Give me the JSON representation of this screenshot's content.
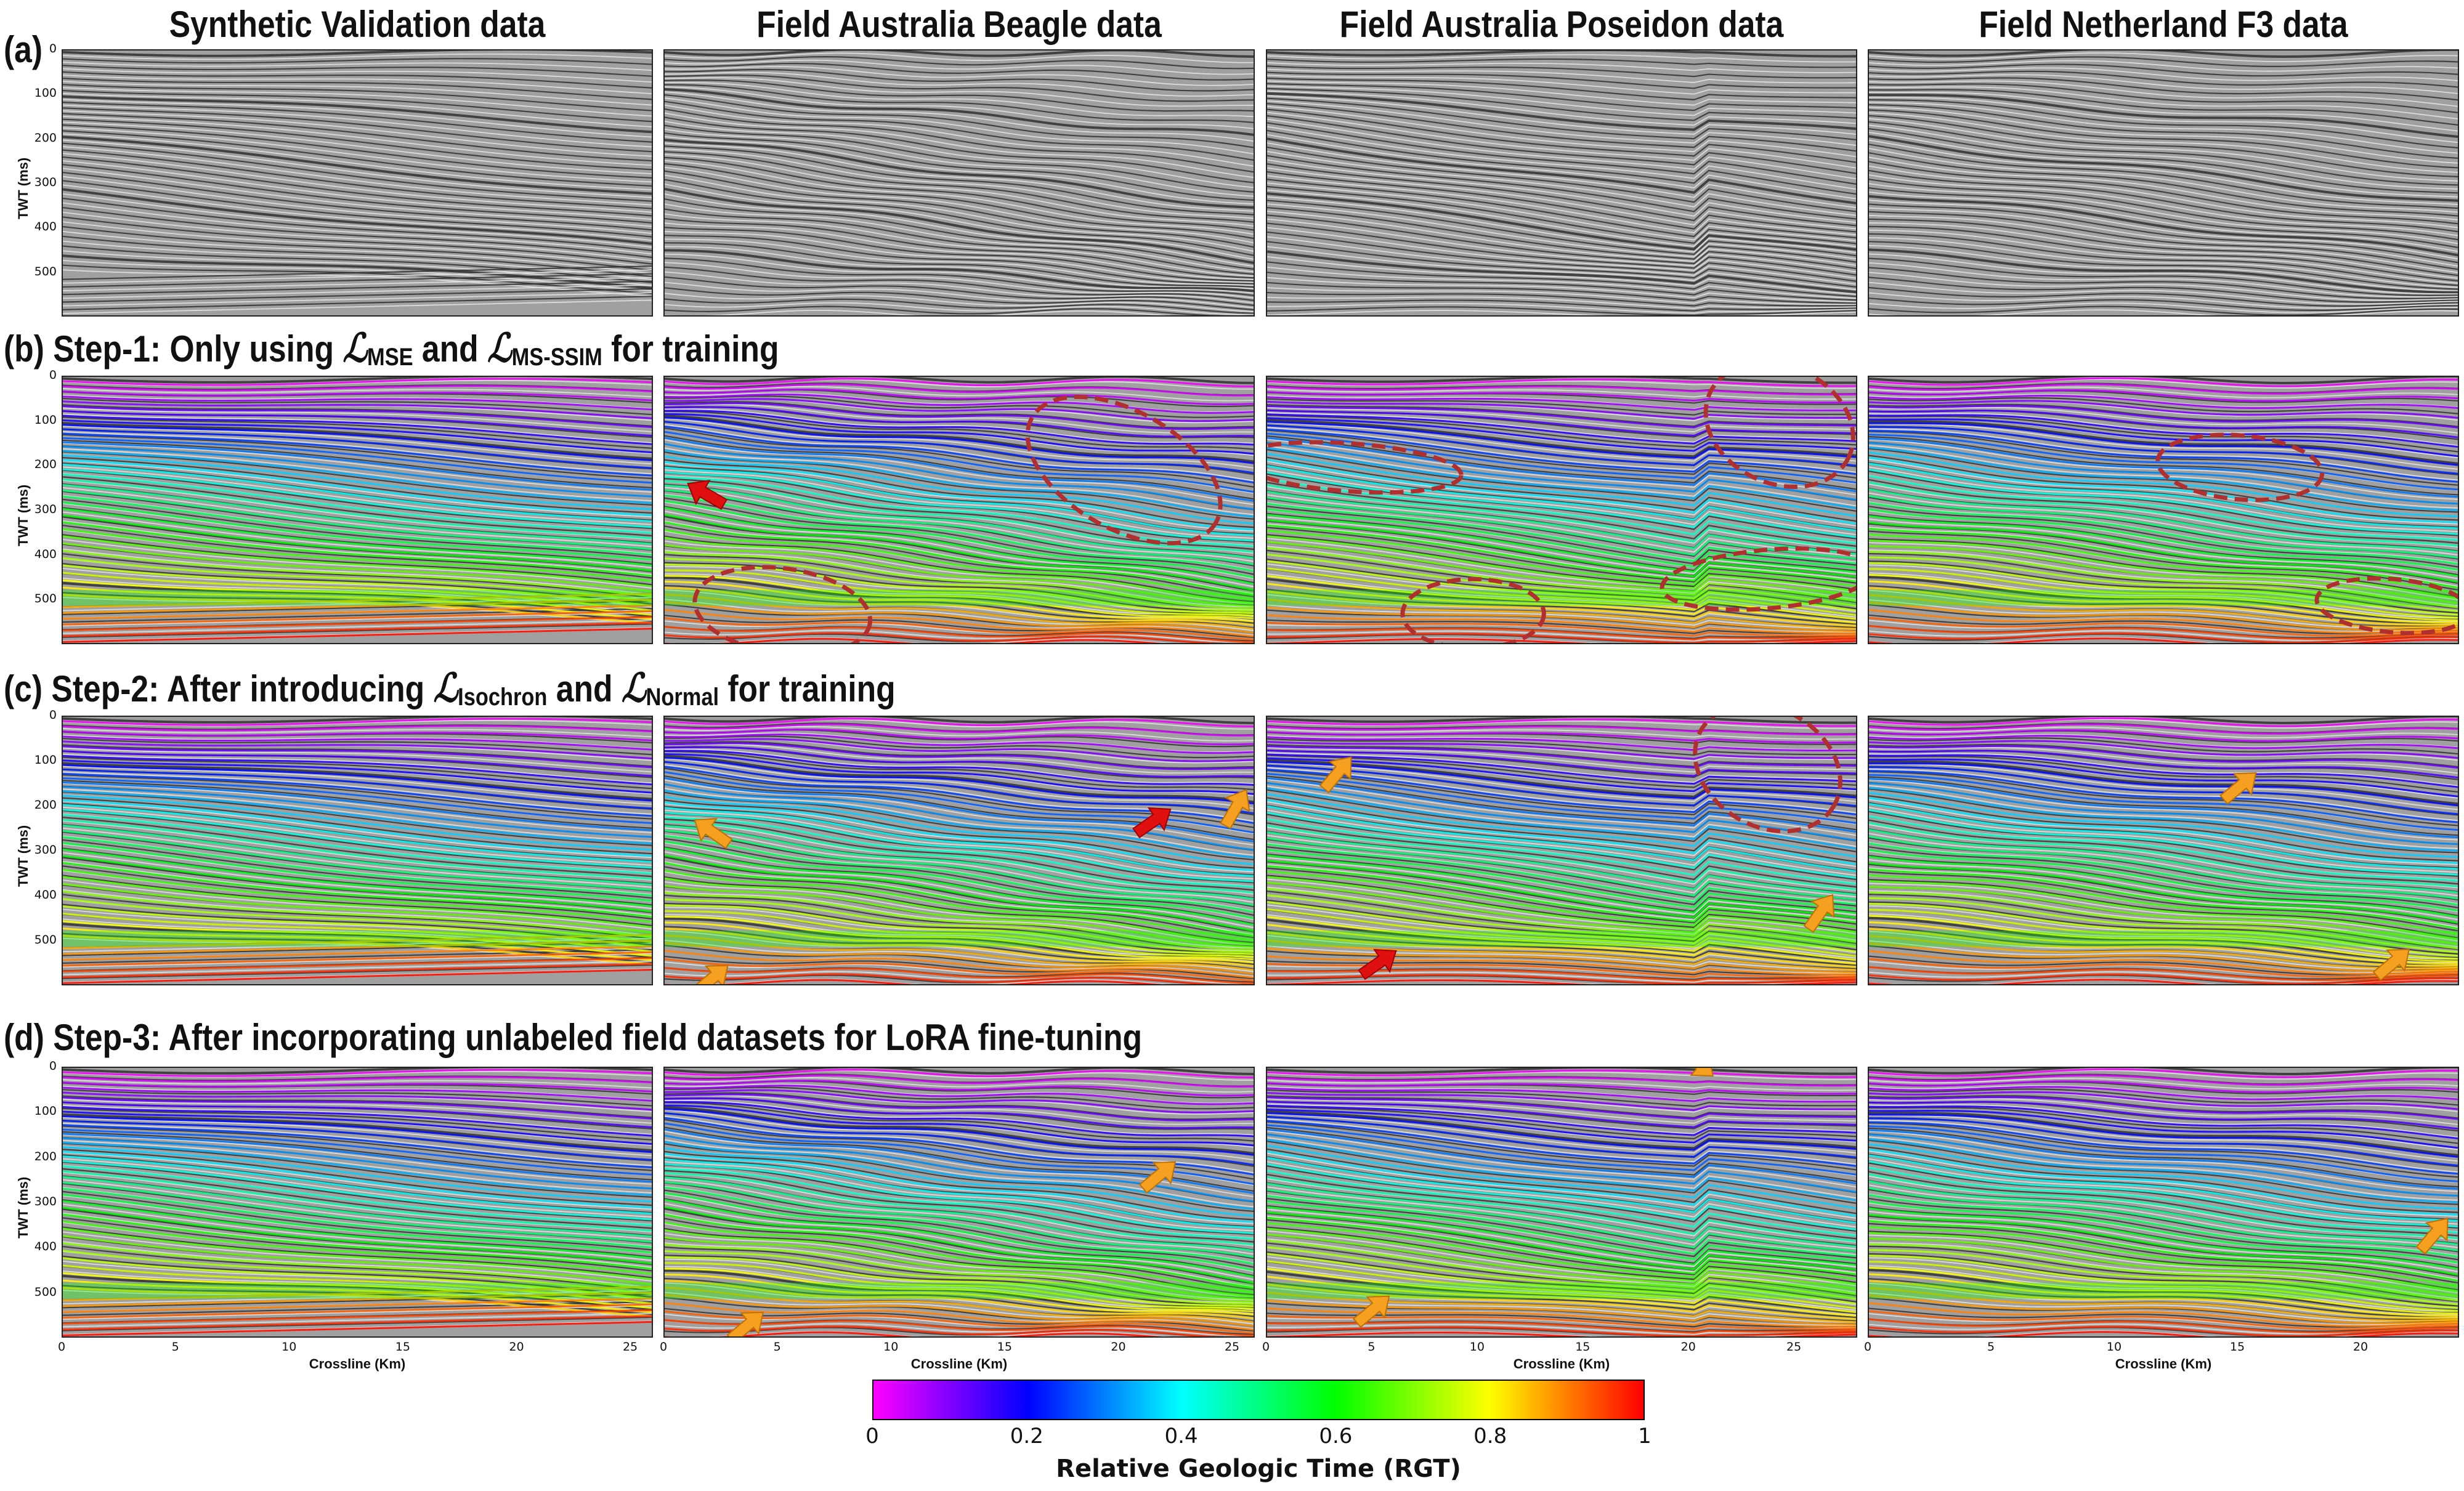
{
  "columns": [
    "Synthetic Validation data",
    "Field Australia Beagle data",
    "Field Australia Poseidon data",
    "Field Netherland F3 data"
  ],
  "rows": {
    "a": {
      "label": "(a)"
    },
    "b": {
      "prefix": "(b) Step-1: Only using ",
      "t1": "MSE",
      "mid": " and ",
      "t2": "MS-SSIM",
      "suffix": " for training"
    },
    "c": {
      "prefix": "(c) Step-2: After introducing ",
      "t1": "Isochron",
      "mid": " and ",
      "t2": "Normal",
      "suffix": " for training"
    },
    "d": {
      "label": "(d) Step-3: After incorporating unlabeled field datasets for LoRA fine-tuning"
    }
  },
  "axes": {
    "ylabel": "TWT (ms)",
    "yticks": [
      "0",
      "100",
      "200",
      "300",
      "400",
      "500"
    ],
    "xlabel": "Crossline (Km)",
    "xticks_synthetic": [
      "0",
      "5",
      "10",
      "15",
      "20",
      "25"
    ],
    "xticks_beagle": [
      "0",
      "5",
      "10",
      "15",
      "20",
      "25"
    ],
    "xticks_poseidon": [
      "0",
      "5",
      "10",
      "15",
      "20",
      "25"
    ],
    "xticks_f3": [
      "0",
      "5",
      "10",
      "15",
      "20"
    ]
  },
  "colorbar": {
    "label": "Relative Geologic Time (RGT)",
    "ticks": [
      "0",
      "0.2",
      "0.4",
      "0.6",
      "0.8",
      "1"
    ],
    "colors": [
      "#ff00ff",
      "#0000ff",
      "#00ffff",
      "#00ff00",
      "#ffff00",
      "#ff0000"
    ]
  },
  "annotation_colors": {
    "ellipse": "#b03030",
    "red_arrow": "#e01010",
    "orange_arrow": "#f5a020"
  }
}
